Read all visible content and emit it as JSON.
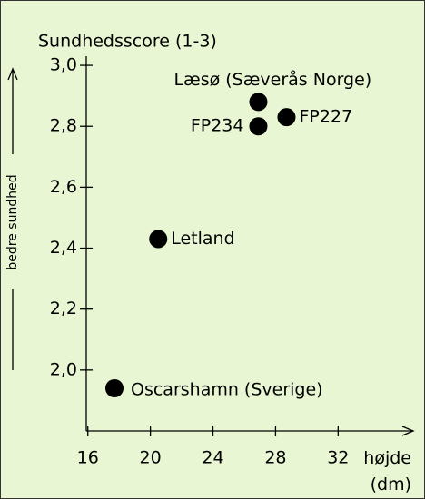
{
  "chart_data": {
    "type": "scatter",
    "y_label": "Sundhedsscore (1-3)",
    "y_side_label": "bedre sundhed",
    "x_label": "højde (dm)",
    "labels": [
      "Læsø (Sæverås Norge)",
      "FP234",
      "FP227",
      "Letland",
      "Oscarshamn (Sverige)"
    ],
    "x": [
      26.9,
      26.9,
      28.7,
      20.5,
      17.7
    ],
    "y": [
      2.88,
      2.8,
      2.83,
      2.43,
      1.94
    ],
    "color": "#000000",
    "xlim": [
      15.9,
      36.8
    ],
    "xticks": [
      16,
      20,
      24,
      28,
      32
    ],
    "ylim": [
      1.8,
      3.03
    ],
    "yticks": [
      {
        "value": 2.0,
        "label": "2,0"
      },
      {
        "value": 2.2,
        "label": "2,2"
      },
      {
        "value": 2.4,
        "label": "2,4"
      },
      {
        "value": 2.6,
        "label": "2,6"
      },
      {
        "value": 2.8,
        "label": "2,8"
      },
      {
        "value": 3.0,
        "label": "3,0"
      }
    ]
  }
}
